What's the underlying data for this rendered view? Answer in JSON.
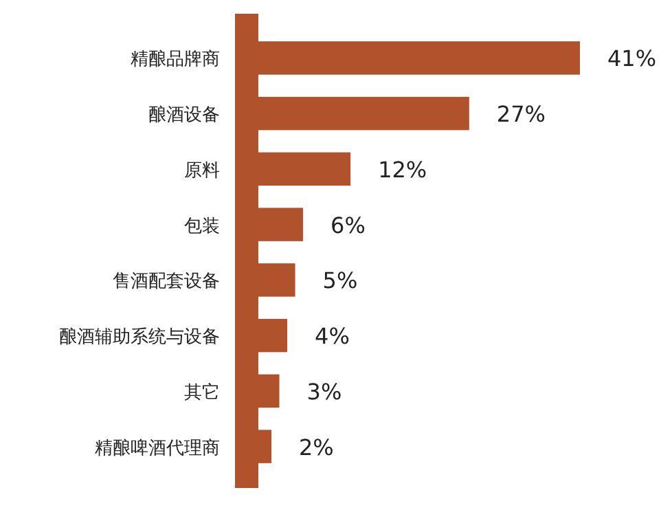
{
  "chart_data": {
    "type": "bar",
    "orientation": "horizontal",
    "categories": [
      "精酿品牌商",
      "酿酒设备",
      "原料",
      "包装",
      "售酒配套设备",
      "酿酒辅助系统与设备",
      "其它",
      "精酿啤酒代理商"
    ],
    "values": [
      41,
      27,
      12,
      6,
      5,
      4,
      3,
      2
    ],
    "value_labels": [
      "41%",
      "27%",
      "12%",
      "6%",
      "5%",
      "4%",
      "3%",
      "2%"
    ],
    "color": "#b0522b"
  }
}
